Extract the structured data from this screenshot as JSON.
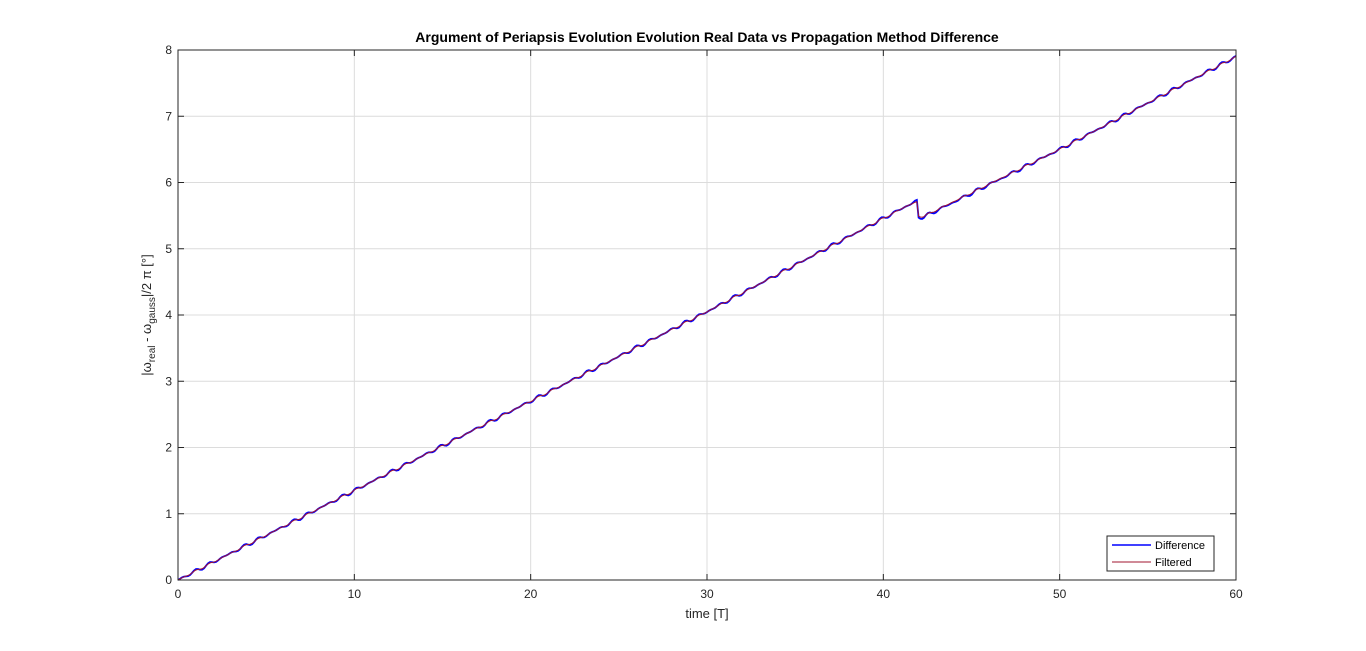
{
  "chart_data": {
    "type": "line",
    "title": "Argument of Periapsis Evolution Evolution Real Data vs Propagation Method Difference",
    "xlabel": "time [T]",
    "ylabel": {
      "open": "|ω",
      "sub1": "real",
      "mid": " - ω",
      "sub2": "gauss",
      "close": "|/2 π [°]"
    },
    "xlim": [
      0,
      60
    ],
    "ylim": [
      0,
      8
    ],
    "x_ticks": [
      "0",
      "10",
      "20",
      "30",
      "40",
      "50",
      "60"
    ],
    "y_ticks": [
      "0",
      "1",
      "2",
      "3",
      "4",
      "5",
      "6",
      "7",
      "8"
    ],
    "grid": true,
    "legend_position": "bottom-right",
    "series": [
      {
        "name": "Difference",
        "color": "#0000ff",
        "points": [
          [
            0,
            0
          ],
          [
            10,
            1.35
          ],
          [
            20,
            2.7
          ],
          [
            30,
            4.05
          ],
          [
            41.5,
            5.67
          ],
          [
            41.9,
            5.72
          ],
          [
            42.0,
            5.47
          ],
          [
            42.3,
            5.48
          ],
          [
            50,
            6.5
          ],
          [
            60,
            7.9
          ]
        ]
      },
      {
        "name": "Filtered",
        "color": "#a2142f",
        "points": [
          [
            0,
            0
          ],
          [
            10,
            1.35
          ],
          [
            20,
            2.7
          ],
          [
            30,
            4.05
          ],
          [
            41.5,
            5.67
          ],
          [
            41.9,
            5.7
          ],
          [
            42.0,
            5.49
          ],
          [
            42.3,
            5.49
          ],
          [
            50,
            6.5
          ],
          [
            60,
            7.9
          ]
        ]
      }
    ]
  }
}
